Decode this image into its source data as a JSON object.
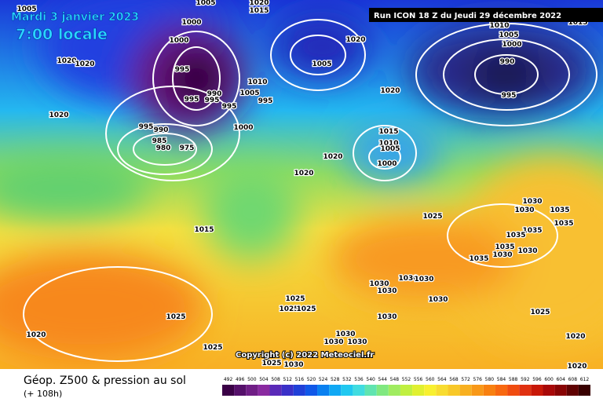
{
  "header": {
    "date": "Mardi 3 janvier 2023",
    "time": "7:00 locale",
    "run": "Run ICON 18 Z du Jeudi 29 décembre 2022"
  },
  "copyright": "Copyright (c) 2022 Meteociel.fr",
  "footer": {
    "title": "Géop. Z500 & pression au sol",
    "lead": "(+ 108h)"
  },
  "isobar_labels": [
    1005,
    1020,
    1015,
    1000,
    1000,
    1005,
    1020,
    1020,
    1020,
    995,
    1010,
    1005,
    995,
    990,
    995,
    995,
    995,
    1000,
    995,
    990,
    985,
    980,
    975,
    1005,
    1020,
    1020,
    1010,
    1005,
    1000,
    990,
    995,
    1015,
    1015,
    1010,
    1005,
    1000,
    1020,
    1020,
    1015,
    1025,
    1030,
    1030,
    1035,
    1035,
    1035,
    1035,
    1035,
    1035,
    1030,
    1030,
    1030,
    1030,
    1030,
    1030,
    1030,
    1030,
    1025,
    1025,
    1025,
    1025,
    1025,
    1020,
    1030,
    1030,
    1030,
    1025,
    1020,
    1020,
    1025,
    1030
  ],
  "legend": {
    "values": [
      492,
      496,
      500,
      504,
      508,
      512,
      516,
      520,
      524,
      528,
      532,
      536,
      540,
      544,
      548,
      552,
      556,
      560,
      564,
      568,
      572,
      576,
      580,
      584,
      588,
      592,
      596,
      600,
      604,
      608,
      612
    ],
    "colors": [
      "#3a0046",
      "#55106a",
      "#701e86",
      "#8a2aa0",
      "#5a2ab8",
      "#3a30c8",
      "#2040d8",
      "#1058e8",
      "#0a80f0",
      "#10a8f4",
      "#20c8f0",
      "#40dce0",
      "#60e4b0",
      "#80e880",
      "#a0ec60",
      "#c0f040",
      "#e0f030",
      "#f8f030",
      "#f8dc30",
      "#f8c828",
      "#f8b020",
      "#f89818",
      "#f88010",
      "#f86810",
      "#f04c10",
      "#e03010",
      "#c81808",
      "#a80808",
      "#880404",
      "#600202",
      "#380000"
    ]
  }
}
